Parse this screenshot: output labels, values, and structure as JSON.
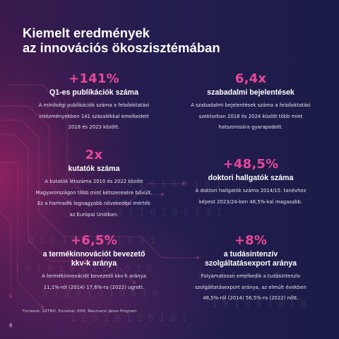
{
  "title": {
    "line1": "Kiemelt eredmények",
    "line2": "az innovációs ökoszisztémában"
  },
  "colors": {
    "accent": "#e8479b",
    "background": "#1f1c4a",
    "text": "#ffffff"
  },
  "stats": [
    {
      "value": "+141%",
      "heading": [
        "Q1-es publikációk száma"
      ],
      "desc": [
        "A minőségi publikációk száma a felsőoktatási",
        "intézményekben 141 százalékkal emelkedett",
        "2018 és 2023 között."
      ]
    },
    {
      "value": "6,4x",
      "heading": [
        "szabadalmi bejelentések"
      ],
      "desc": [
        "A szabadalmi bejelentések száma a felsőoktatási",
        "szektorban 2018 és 2024 között több mint",
        "hatszorosára gyarapodott."
      ]
    },
    {
      "value": "2x",
      "heading": [
        "kutatók száma"
      ],
      "desc": [
        "A kutatók létszáma 2010 és 2022 között",
        "Magyarországon több mint kétszeresére bővült.",
        "Ez a harmadik legnagyobb növekedési mérték",
        "az Európai Unióban."
      ]
    },
    {
      "value": "+48,5%",
      "heading": [
        "doktori hallgatók száma"
      ],
      "desc": [
        "A doktori hallgatók száma 2014/15. tanévhez",
        "képest 2023/24-ben 48,5%-kal magasabb."
      ]
    },
    {
      "value": "+6,5%",
      "heading": [
        "a termékinnovációt bevezető",
        "kkv-k aránya"
      ],
      "desc": [
        "A termékinnovációt bevezető kkv-k aránya",
        "11,1%-ról (2014) 17,6%-ra (2022) ugrott."
      ]
    },
    {
      "value": "+8%",
      "heading": [
        "a tudásintenzív",
        "szolgáltatásexport aránya"
      ],
      "desc": [
        "Folyamatosan emelkedik a tudásintenzív",
        "szolgáltatásexport aránya, az elmúlt években",
        "48,5%-ról (2014) 56,5%-ra (2022) nőtt."
      ]
    }
  ],
  "sources": "Források: SZTNH, Eurostat, KSH, Neumann János Program",
  "page_number": "8"
}
